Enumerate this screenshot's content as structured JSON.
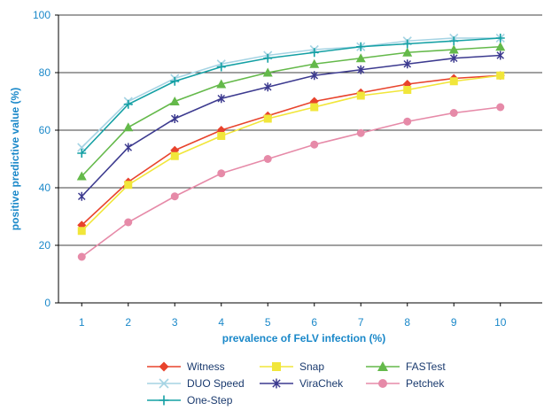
{
  "chart_data": {
    "type": "line",
    "xlabel": "prevalence of FeLV infection (%)",
    "ylabel": "positive predictive value (%)",
    "x": [
      1,
      2,
      3,
      4,
      5,
      6,
      7,
      8,
      9,
      10
    ],
    "x_ticks": [
      "1",
      "2",
      "3",
      "4",
      "5",
      "6",
      "7",
      "8",
      "9",
      "10"
    ],
    "y_ticks": [
      "0",
      "20",
      "40",
      "60",
      "80",
      "100"
    ],
    "xlim": [
      0.5,
      10.9
    ],
    "ylim": [
      0,
      100
    ],
    "grid": "horizontal major lines",
    "legend_position": "bottom",
    "series": [
      {
        "name": "Witness",
        "color": "#e8432c",
        "marker": "diamond",
        "values": [
          27,
          42,
          53,
          60,
          65,
          70,
          73,
          76,
          78,
          79
        ]
      },
      {
        "name": "Snap",
        "color": "#f1e63a",
        "marker": "square",
        "values": [
          25,
          41,
          51,
          58,
          64,
          68,
          72,
          74,
          77,
          79
        ]
      },
      {
        "name": "FASTest",
        "color": "#64b94a",
        "marker": "triangle",
        "values": [
          44,
          61,
          70,
          76,
          80,
          83,
          85,
          87,
          88,
          89
        ]
      },
      {
        "name": "DUO Speed",
        "color": "#a6d4e4",
        "marker": "x",
        "values": [
          54,
          70,
          78,
          83,
          86,
          88,
          89,
          91,
          92,
          92
        ]
      },
      {
        "name": "ViraChek",
        "color": "#3c3a8f",
        "marker": "asterisk",
        "values": [
          37,
          54,
          64,
          71,
          75,
          79,
          81,
          83,
          85,
          86
        ]
      },
      {
        "name": "Petchek",
        "color": "#e68aa8",
        "marker": "circle",
        "values": [
          16,
          28,
          37,
          45,
          50,
          55,
          59,
          63,
          66,
          68
        ]
      },
      {
        "name": "One-Step",
        "color": "#14a0a4",
        "marker": "plus",
        "values": [
          52,
          69,
          77,
          82,
          85,
          87,
          89,
          90,
          91,
          92
        ]
      }
    ]
  }
}
